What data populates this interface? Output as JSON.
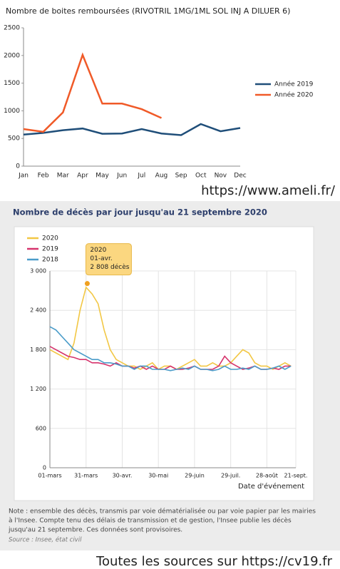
{
  "chart_data": [
    {
      "type": "line",
      "title": "Nombre de boites remboursées (RIVOTRIL 1MG/1ML SOL INJ A DILUER 6)",
      "categories": [
        "Jan",
        "Feb",
        "Mar",
        "Apr",
        "May",
        "Jun",
        "Jul",
        "Aug",
        "Sep",
        "Oct",
        "Nov",
        "Dec"
      ],
      "series": [
        {
          "name": "Année 2019",
          "color": "#1f4e79",
          "values": [
            570,
            600,
            650,
            680,
            585,
            590,
            670,
            590,
            560,
            760,
            630,
            690
          ]
        },
        {
          "name": "Année 2020",
          "color": "#f05a28",
          "values": [
            670,
            620,
            970,
            2010,
            1130,
            1130,
            1030,
            870,
            null,
            null,
            null,
            null
          ]
        }
      ],
      "ylim": [
        0,
        2500
      ],
      "yticks": [
        0,
        500,
        1000,
        1500,
        2000,
        2500
      ],
      "grid": false,
      "annotation": "https://www.ameli.fr/"
    },
    {
      "type": "line",
      "title": "Nombre de décès par jour jusqu'au 21 septembre 2020",
      "x": [
        0,
        5,
        10,
        15,
        20,
        25,
        30,
        35,
        40,
        45,
        50,
        55,
        60,
        65,
        70,
        75,
        80,
        85,
        90,
        95,
        100,
        105,
        110,
        115,
        120,
        125,
        130,
        135,
        140,
        145,
        150,
        155,
        160,
        165,
        170,
        175,
        180,
        185,
        190,
        195,
        200
      ],
      "series": [
        {
          "name": "2020",
          "color": "#f2c744",
          "values": [
            1800,
            1750,
            1700,
            1650,
            1900,
            2400,
            2750,
            2650,
            2500,
            2100,
            1800,
            1650,
            1600,
            1550,
            1550,
            1500,
            1550,
            1600,
            1500,
            1550,
            1550,
            1500,
            1550,
            1600,
            1650,
            1550,
            1550,
            1600,
            1550,
            1550,
            1600,
            1700,
            1800,
            1750,
            1600,
            1550,
            1550,
            1500,
            1550,
            1600,
            1550
          ]
        },
        {
          "name": "2019",
          "color": "#d6336c",
          "values": [
            1850,
            1800,
            1750,
            1700,
            1680,
            1650,
            1650,
            1600,
            1600,
            1580,
            1550,
            1600,
            1550,
            1550,
            1520,
            1550,
            1500,
            1550,
            1500,
            1500,
            1550,
            1500,
            1500,
            1520,
            1550,
            1500,
            1500,
            1500,
            1550,
            1700,
            1600,
            1550,
            1500,
            1520,
            1550,
            1500,
            1500,
            1520,
            1500,
            1550,
            1550
          ]
        },
        {
          "name": "2018",
          "color": "#4a9cc9",
          "values": [
            2150,
            2100,
            2000,
            1900,
            1800,
            1750,
            1700,
            1650,
            1650,
            1600,
            1600,
            1580,
            1550,
            1550,
            1500,
            1550,
            1550,
            1500,
            1500,
            1500,
            1480,
            1500,
            1520,
            1500,
            1550,
            1500,
            1500,
            1480,
            1500,
            1550,
            1500,
            1500,
            1520,
            1500,
            1550,
            1500,
            1500,
            1520,
            1550,
            1500,
            1550
          ]
        }
      ],
      "xlim": [
        0,
        204
      ],
      "xticks": [
        {
          "value": 0,
          "label": "01-mars"
        },
        {
          "value": 30,
          "label": "31-mars"
        },
        {
          "value": 60,
          "label": "30-avr."
        },
        {
          "value": 90,
          "label": "30-mai"
        },
        {
          "value": 120,
          "label": "29-juin"
        },
        {
          "value": 150,
          "label": "29-juil."
        },
        {
          "value": 180,
          "label": "28-août"
        },
        {
          "value": 204,
          "label": "21-sept."
        }
      ],
      "ylim": [
        0,
        3000
      ],
      "yticks": [
        0,
        600,
        {
          "value": 1200,
          "label": "1 200"
        },
        {
          "value": 1800,
          "label": "1 800"
        },
        {
          "value": 2400,
          "label": "2 400"
        },
        {
          "value": 3000,
          "label": "3 000"
        }
      ],
      "grid": true,
      "xlabel": "Date d'événement",
      "annotation": {
        "x": 31,
        "y": 2808,
        "label": [
          "2020",
          "01-avr.",
          "2 808 décès"
        ]
      },
      "note": [
        "Note : ensemble des décès, transmis par voie dématérialisée ou par voie papier par les mairies",
        "à l'Insee. Compte tenu des délais de transmission et de gestion, l'Insee publie les décès",
        "jusqu'au 21 septembre. Ces données sont provisoires."
      ],
      "source": "Source : Insee, état civil"
    }
  ],
  "footer": "Toutes les sources sur https://cv19.fr"
}
